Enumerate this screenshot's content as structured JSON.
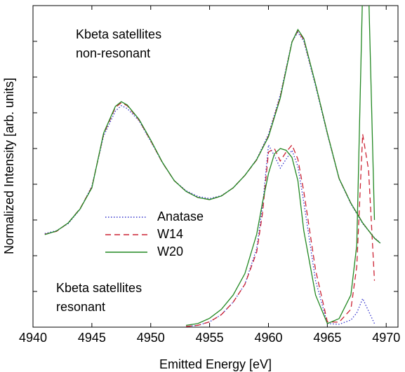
{
  "chart_data": {
    "type": "line",
    "xlabel": "Emitted Energy [eV]",
    "ylabel": "Normalized Intensity [arb. units]",
    "annotations": [
      [
        "Kbeta satellites",
        "non-resonant"
      ],
      [
        "Kbeta satellites",
        "resonant"
      ]
    ],
    "xlim": [
      4940,
      4971
    ],
    "xticks": [
      4940,
      4945,
      4950,
      4955,
      4960,
      4965,
      4970
    ],
    "ylim": [
      0,
      9
    ],
    "yticks": [
      0,
      1,
      2,
      3,
      4,
      5,
      6,
      7,
      8,
      9
    ],
    "legend": "center-left",
    "x": [
      4941,
      4942,
      4943,
      4944,
      4945,
      4946,
      4947,
      4947.5,
      4948,
      4949,
      4950,
      4951,
      4952,
      4953,
      4954,
      4955,
      4956,
      4957,
      4958,
      4959,
      4960,
      4961,
      4962,
      4962.5,
      4963,
      4964,
      4965,
      4966,
      4967,
      4968,
      4969,
      4969.5
    ],
    "resonant_x": [
      4953,
      4954,
      4955,
      4956,
      4957,
      4958,
      4959,
      4959.5,
      4960,
      4960.5,
      4961,
      4961.5,
      4962,
      4962.5,
      4963,
      4964,
      4965,
      4966,
      4967,
      4967.5,
      4968,
      4968.5,
      4969
    ],
    "series": [
      {
        "name": "Anatase",
        "color": "#3333cc",
        "dash": "dotted",
        "values": [
          2.62,
          2.7,
          2.9,
          3.3,
          3.95,
          5.35,
          6.05,
          6.2,
          6.12,
          5.78,
          5.2,
          4.6,
          4.1,
          3.82,
          3.66,
          3.6,
          3.68,
          3.9,
          4.25,
          4.7,
          5.4,
          6.5,
          8.0,
          8.25,
          8.0,
          6.75,
          5.4,
          4.15,
          3.45,
          2.9,
          2.5,
          2.36
        ],
        "resonant_values": [
          0.02,
          0.05,
          0.15,
          0.35,
          0.7,
          1.2,
          2.2,
          3.4,
          5.1,
          4.8,
          4.45,
          4.7,
          4.95,
          4.5,
          3.5,
          1.3,
          0.1,
          0.08,
          0.2,
          0.4,
          0.8,
          0.45,
          0.1
        ]
      },
      {
        "name": "W14",
        "color": "#cc2233",
        "dash": "dashed",
        "values": [
          2.6,
          2.68,
          2.92,
          3.32,
          3.92,
          5.4,
          6.15,
          6.28,
          6.2,
          5.8,
          5.22,
          4.6,
          4.1,
          3.8,
          3.63,
          3.57,
          3.67,
          3.9,
          4.25,
          4.68,
          5.35,
          6.45,
          7.98,
          8.3,
          8.05,
          6.8,
          5.43,
          4.16,
          3.47,
          2.92,
          2.49,
          2.35
        ],
        "resonant_values": [
          0.02,
          0.05,
          0.15,
          0.35,
          0.7,
          1.2,
          2.1,
          3.2,
          4.9,
          5.0,
          4.65,
          4.9,
          5.1,
          4.7,
          3.8,
          1.6,
          0.15,
          0.14,
          0.5,
          1.7,
          5.4,
          4.4,
          1.3
        ]
      },
      {
        "name": "W20",
        "color": "#228822",
        "dash": "solid",
        "values": [
          2.59,
          2.69,
          2.92,
          3.31,
          3.9,
          5.43,
          6.18,
          6.31,
          6.22,
          5.82,
          5.24,
          4.61,
          4.1,
          3.8,
          3.63,
          3.57,
          3.67,
          3.9,
          4.25,
          4.69,
          5.33,
          6.41,
          7.98,
          8.33,
          8.08,
          6.8,
          5.43,
          4.16,
          3.47,
          2.92,
          2.49,
          2.35
        ],
        "resonant_values": [
          0.05,
          0.1,
          0.25,
          0.5,
          0.9,
          1.5,
          2.6,
          3.5,
          4.3,
          4.85,
          5.0,
          4.95,
          4.75,
          4.1,
          2.7,
          0.9,
          0.1,
          0.24,
          0.9,
          2.3,
          9.5,
          9.5,
          3.0
        ]
      }
    ]
  }
}
